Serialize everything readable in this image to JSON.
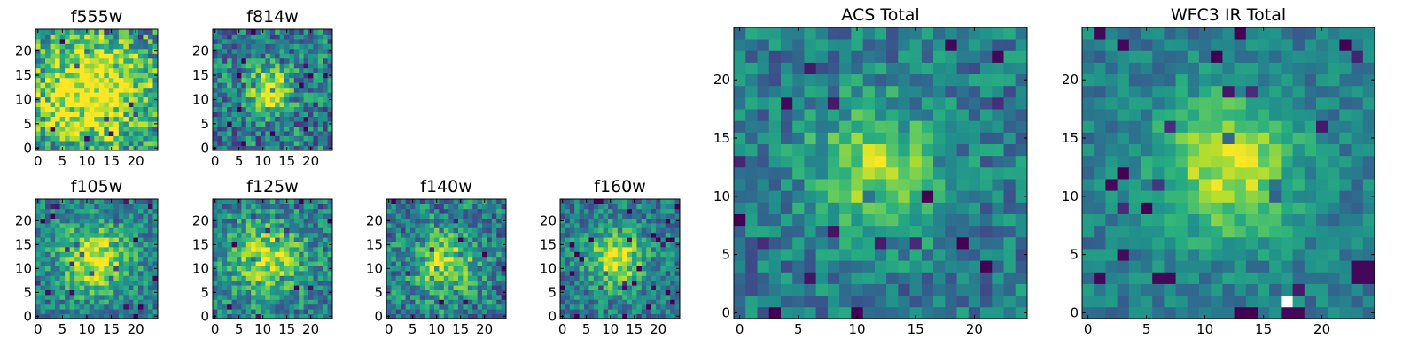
{
  "chart_data": [
    {
      "type": "heatmap",
      "title": "f555w",
      "cols": 25,
      "rows": 25,
      "xticks": [
        "0",
        "5",
        "10",
        "15",
        "20"
      ],
      "yticks": [
        "0",
        "5",
        "10",
        "15",
        "20"
      ],
      "xlim": [
        -0.5,
        24.5
      ],
      "ylim": [
        -0.5,
        24.5
      ],
      "colormap": "viridis",
      "center": [
        11,
        12
      ],
      "sigma": 9,
      "peak": 0.62,
      "noise": 0.32,
      "seed": 11
    },
    {
      "type": "heatmap",
      "title": "f814w",
      "cols": 25,
      "rows": 25,
      "xticks": [
        "0",
        "5",
        "10",
        "15",
        "20"
      ],
      "yticks": [
        "0",
        "5",
        "10",
        "15",
        "20"
      ],
      "xlim": [
        -0.5,
        24.5
      ],
      "ylim": [
        -0.5,
        24.5
      ],
      "colormap": "viridis",
      "center": [
        11,
        12
      ],
      "sigma": 3.2,
      "peak": 0.6,
      "noise": 0.28,
      "seed": 23
    },
    {
      "type": "heatmap",
      "title": "f105w",
      "cols": 25,
      "rows": 25,
      "xticks": [
        "0",
        "5",
        "10",
        "15",
        "20"
      ],
      "yticks": [
        "0",
        "5",
        "10",
        "15",
        "20"
      ],
      "xlim": [
        -0.5,
        24.5
      ],
      "ylim": [
        -0.5,
        24.5
      ],
      "colormap": "viridis",
      "center": [
        11.5,
        12
      ],
      "sigma": 5,
      "peak": 0.55,
      "noise": 0.22,
      "seed": 37
    },
    {
      "type": "heatmap",
      "title": "f125w",
      "cols": 25,
      "rows": 25,
      "xticks": [
        "0",
        "5",
        "10",
        "15",
        "20"
      ],
      "yticks": [
        "0",
        "5",
        "10",
        "15",
        "20"
      ],
      "xlim": [
        -0.5,
        24.5
      ],
      "ylim": [
        -0.5,
        24.5
      ],
      "colormap": "viridis",
      "center": [
        11,
        12
      ],
      "sigma": 5.5,
      "peak": 0.45,
      "noise": 0.24,
      "seed": 41
    },
    {
      "type": "heatmap",
      "title": "f140w",
      "cols": 25,
      "rows": 25,
      "xticks": [
        "0",
        "5",
        "10",
        "15",
        "20"
      ],
      "yticks": [
        "0",
        "5",
        "10",
        "15",
        "20"
      ],
      "xlim": [
        -0.5,
        24.5
      ],
      "ylim": [
        -0.5,
        24.5
      ],
      "colormap": "viridis",
      "center": [
        12,
        11
      ],
      "sigma": 4.5,
      "peak": 0.45,
      "noise": 0.26,
      "seed": 53
    },
    {
      "type": "heatmap",
      "title": "f160w",
      "cols": 25,
      "rows": 25,
      "xticks": [
        "0",
        "5",
        "10",
        "15",
        "20"
      ],
      "yticks": [
        "0",
        "5",
        "10",
        "15",
        "20"
      ],
      "xlim": [
        -0.5,
        24.5
      ],
      "ylim": [
        -0.5,
        24.5
      ],
      "colormap": "viridis",
      "center": [
        11,
        12
      ],
      "sigma": 4,
      "peak": 0.55,
      "noise": 0.22,
      "seed": 67
    },
    {
      "type": "heatmap",
      "title": "ACS Total",
      "cols": 25,
      "rows": 25,
      "xticks": [
        "0",
        "5",
        "10",
        "15",
        "20"
      ],
      "yticks": [
        "0",
        "5",
        "10",
        "15",
        "20"
      ],
      "xlim": [
        -0.5,
        24.5
      ],
      "ylim": [
        -0.5,
        24.5
      ],
      "colormap": "viridis",
      "center": [
        11.5,
        12.5
      ],
      "sigma": 3.6,
      "peak": 0.45,
      "noise": 0.2,
      "seed": 79
    },
    {
      "type": "heatmap",
      "title": "WFC3 IR Total",
      "cols": 25,
      "rows": 25,
      "xticks": [
        "0",
        "5",
        "10",
        "15",
        "20"
      ],
      "yticks": [
        "0",
        "5",
        "10",
        "15",
        "20"
      ],
      "xlim": [
        -0.5,
        24.5
      ],
      "ylim": [
        -0.5,
        24.5
      ],
      "colormap": "viridis",
      "center": [
        12,
        12.5
      ],
      "sigma": 4.2,
      "peak": 0.5,
      "noise": 0.14,
      "seed": 97,
      "masked_cells": [
        [
          17,
          1
        ]
      ],
      "low_cells": [
        [
          7,
          3
        ],
        [
          6,
          3
        ],
        [
          17,
          0
        ],
        [
          18,
          0
        ],
        [
          23,
          3
        ],
        [
          24,
          3
        ],
        [
          23,
          4
        ],
        [
          24,
          4
        ],
        [
          3,
          23
        ],
        [
          1,
          24
        ]
      ]
    }
  ],
  "colors": {
    "background": "#ffffff",
    "axis": "#000000",
    "masked": "#ffffff"
  }
}
